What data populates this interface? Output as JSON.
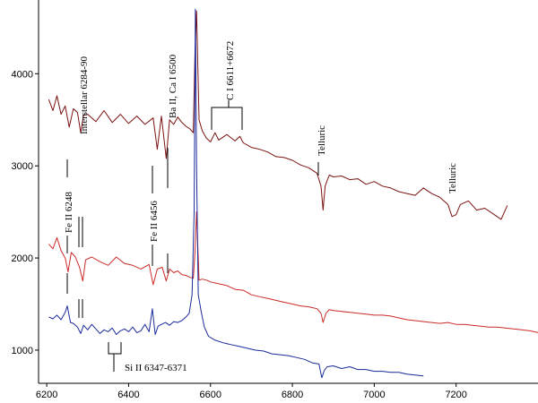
{
  "chart_data": {
    "type": "line",
    "title": "",
    "xlabel": "",
    "ylabel": "",
    "xlim": [
      6180,
      7400
    ],
    "ylim": [
      640,
      4800
    ],
    "x_ticks": [
      6200,
      6400,
      6600,
      6800,
      7000,
      7200
    ],
    "y_ticks": [
      1000,
      2000,
      3000,
      4000
    ],
    "x_tick_labels": [
      "6200",
      "6400",
      "6600",
      "6800",
      "7000",
      "7200"
    ],
    "y_tick_labels": [
      "1000",
      "2000",
      "3000",
      "4000"
    ],
    "grid": false,
    "legend": "none",
    "series": [
      {
        "color": "#7a1212",
        "x": [
          6205,
          6215,
          6225,
          6235,
          6245,
          6255,
          6265,
          6275,
          6283,
          6290,
          6300,
          6320,
          6340,
          6360,
          6380,
          6400,
          6420,
          6440,
          6460,
          6470,
          6480,
          6492,
          6500,
          6510,
          6520,
          6530,
          6540,
          6550,
          6558,
          6562,
          6566,
          6572,
          6580,
          6590,
          6600,
          6611,
          6620,
          6640,
          6660,
          6672,
          6680,
          6700,
          6720,
          6740,
          6760,
          6780,
          6800,
          6820,
          6840,
          6860,
          6870,
          6875,
          6880,
          6890,
          6900,
          6920,
          6940,
          6960,
          6980,
          7000,
          7020,
          7040,
          7060,
          7080,
          7100,
          7120,
          7140,
          7160,
          7180,
          7190,
          7200,
          7210,
          7230,
          7250,
          7270,
          7290,
          7310,
          7325
        ],
        "y": [
          3720,
          3600,
          3760,
          3560,
          3650,
          3420,
          3620,
          3580,
          3360,
          3550,
          3560,
          3480,
          3600,
          3470,
          3560,
          3460,
          3540,
          3450,
          3520,
          3180,
          3540,
          3080,
          3500,
          3450,
          3530,
          3470,
          3430,
          3400,
          3360,
          4200,
          4680,
          3500,
          3380,
          3300,
          3260,
          3360,
          3280,
          3340,
          3270,
          3320,
          3250,
          3200,
          3180,
          3150,
          3100,
          3090,
          3060,
          3010,
          2980,
          2920,
          2780,
          2520,
          2780,
          2900,
          2880,
          2890,
          2850,
          2860,
          2800,
          2830,
          2780,
          2760,
          2720,
          2700,
          2680,
          2760,
          2700,
          2660,
          2580,
          2450,
          2470,
          2580,
          2620,
          2520,
          2540,
          2480,
          2420,
          2570
        ]
      },
      {
        "color": "#cc2a2a",
        "x": [
          6205,
          6215,
          6225,
          6235,
          6245,
          6252,
          6260,
          6270,
          6280,
          6288,
          6295,
          6310,
          6330,
          6350,
          6370,
          6390,
          6410,
          6430,
          6450,
          6460,
          6470,
          6482,
          6492,
          6500,
          6510,
          6520,
          6530,
          6540,
          6550,
          6558,
          6562,
          6566,
          6572,
          6580,
          6590,
          6600,
          6620,
          6640,
          6660,
          6680,
          6700,
          6720,
          6740,
          6760,
          6780,
          6800,
          6820,
          6840,
          6860,
          6870,
          6875,
          6882,
          6890,
          6900,
          6920,
          6940,
          6960,
          6980,
          7000,
          7020,
          7040,
          7060,
          7080,
          7100,
          7120,
          7140,
          7160,
          7180,
          7200,
          7220,
          7240,
          7260,
          7280,
          7300,
          7320,
          7340,
          7360,
          7380,
          7400
        ],
        "y": [
          2150,
          2100,
          2220,
          2080,
          2000,
          1850,
          2060,
          2010,
          1900,
          1750,
          1980,
          2010,
          1960,
          1920,
          2010,
          1940,
          1920,
          1880,
          1930,
          1710,
          1880,
          1900,
          1750,
          1880,
          1840,
          1860,
          1820,
          1810,
          1790,
          1780,
          2050,
          2500,
          1760,
          1770,
          1760,
          1740,
          1720,
          1700,
          1660,
          1650,
          1600,
          1580,
          1560,
          1540,
          1520,
          1500,
          1480,
          1470,
          1450,
          1400,
          1300,
          1400,
          1440,
          1430,
          1420,
          1410,
          1400,
          1390,
          1380,
          1380,
          1370,
          1350,
          1330,
          1320,
          1310,
          1300,
          1290,
          1300,
          1280,
          1280,
          1270,
          1260,
          1250,
          1250,
          1240,
          1230,
          1220,
          1210,
          1190
        ]
      },
      {
        "color": "#1a2a9a",
        "x": [
          6205,
          6215,
          6225,
          6235,
          6245,
          6250,
          6258,
          6265,
          6275,
          6283,
          6290,
          6300,
          6310,
          6320,
          6330,
          6340,
          6350,
          6360,
          6370,
          6380,
          6390,
          6400,
          6410,
          6420,
          6430,
          6440,
          6450,
          6458,
          6465,
          6472,
          6480,
          6490,
          6500,
          6510,
          6520,
          6530,
          6540,
          6548,
          6555,
          6560,
          6563,
          6566,
          6570,
          6578,
          6585,
          6595,
          6610,
          6630,
          6650,
          6670,
          6690,
          6710,
          6730,
          6750,
          6770,
          6790,
          6810,
          6830,
          6850,
          6865,
          6872,
          6878,
          6885,
          6900,
          6920,
          6940,
          6960,
          6980,
          7000,
          7020,
          7040,
          7060,
          7080,
          7100,
          7120
        ],
        "y": [
          1360,
          1340,
          1380,
          1330,
          1410,
          1480,
          1300,
          1290,
          1250,
          1180,
          1270,
          1220,
          1280,
          1230,
          1180,
          1220,
          1200,
          1240,
          1170,
          1210,
          1230,
          1200,
          1250,
          1190,
          1210,
          1280,
          1200,
          1450,
          1170,
          1260,
          1280,
          1300,
          1270,
          1310,
          1300,
          1320,
          1360,
          1400,
          1600,
          2500,
          4700,
          3000,
          1600,
          1400,
          1250,
          1150,
          1110,
          1080,
          1060,
          1040,
          1020,
          1000,
          990,
          960,
          950,
          940,
          920,
          900,
          860,
          850,
          700,
          780,
          820,
          830,
          800,
          820,
          790,
          790,
          770,
          770,
          760,
          760,
          740,
          730,
          720
        ]
      }
    ],
    "annotations": [
      {
        "text": "Interstellar 6284-90"
      },
      {
        "text": "Ba II, Ca I 6500"
      },
      {
        "text": "C I 6611+6672"
      },
      {
        "text": "Telluric"
      },
      {
        "text": "Telluric"
      },
      {
        "text": "Fe II 6248"
      },
      {
        "text": "Fe II 6456"
      },
      {
        "text": "Si II 6347-6371"
      }
    ]
  }
}
